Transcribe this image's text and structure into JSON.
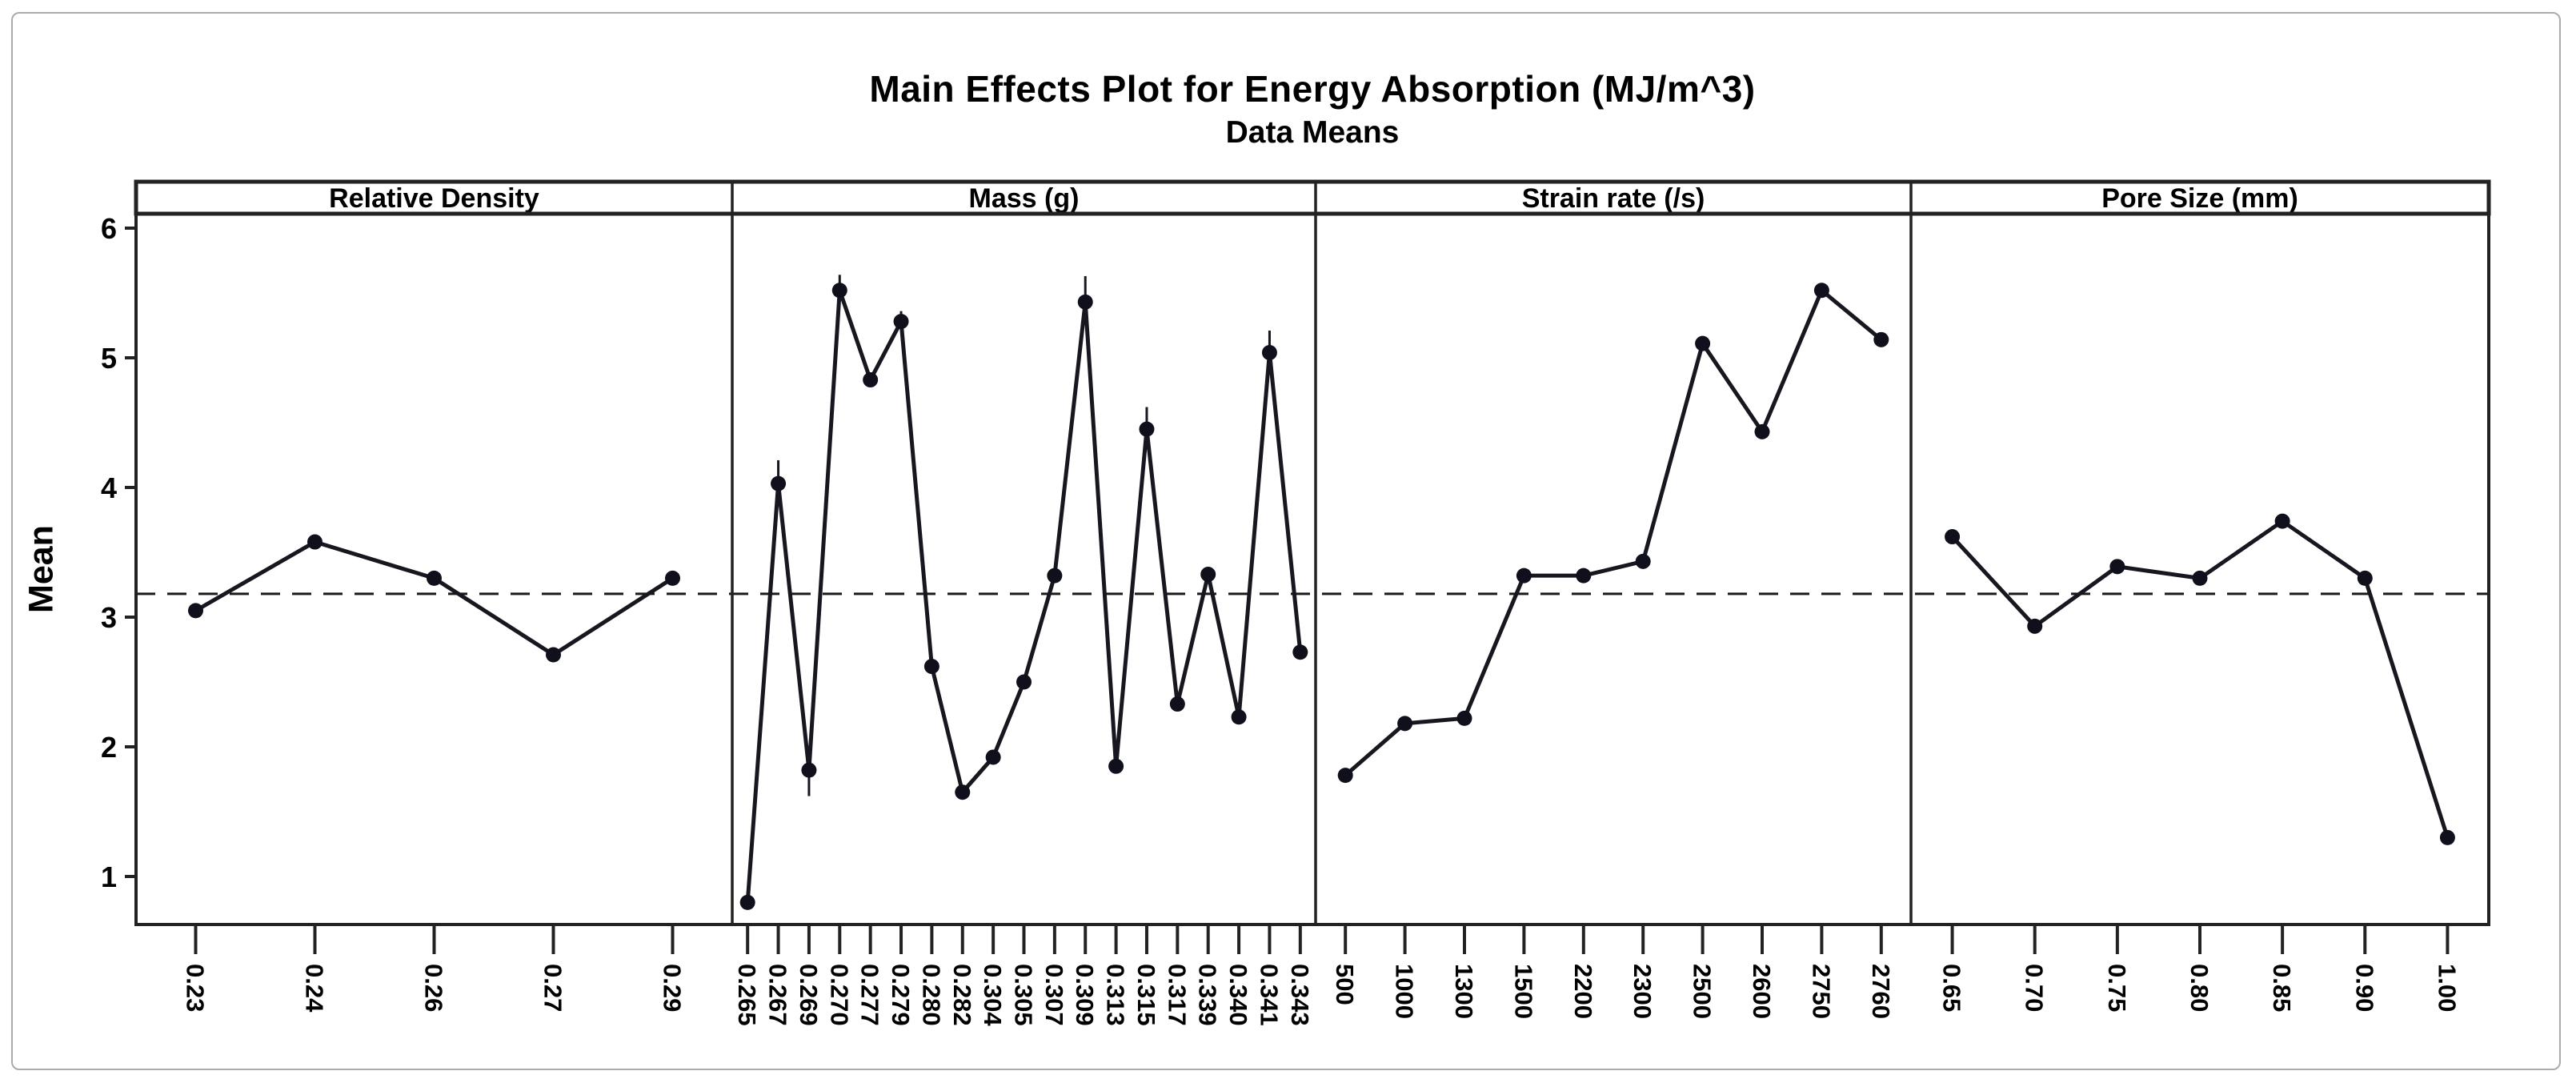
{
  "chart_data": {
    "type": "line",
    "title": "Main Effects Plot for Energy Absorption (MJ/m^3)",
    "subtitle": "Data Means",
    "ylabel": "Mean",
    "ylim": [
      0.6,
      6.1
    ],
    "yticks": [
      6,
      5,
      4,
      3,
      2,
      1
    ],
    "grand_mean": 3.18,
    "grand_mean_style": "dashed",
    "grid": false,
    "legend": "none",
    "marker": "filled-circle",
    "panels": [
      {
        "label": "Relative Density",
        "categories": [
          "0.23",
          "0.24",
          "0.26",
          "0.27",
          "0.29"
        ],
        "values": [
          3.05,
          3.58,
          3.3,
          2.71,
          3.3
        ],
        "whiskers": []
      },
      {
        "label": "Mass (g)",
        "categories": [
          "0.265",
          "0.267",
          "0.269",
          "0.270",
          "0.277",
          "0.279",
          "0.280",
          "0.282",
          "0.304",
          "0.305",
          "0.307",
          "0.309",
          "0.313",
          "0.315",
          "0.317",
          "0.339",
          "0.340",
          "0.341",
          "0.343"
        ],
        "values": [
          0.8,
          4.03,
          1.82,
          5.52,
          4.83,
          5.28,
          2.62,
          1.65,
          1.92,
          2.5,
          3.32,
          5.43,
          1.85,
          4.45,
          2.33,
          3.33,
          2.23,
          5.04,
          2.73
        ],
        "whiskers": [
          {
            "i": 1,
            "up": 0.18,
            "down": 0
          },
          {
            "i": 2,
            "up": 0,
            "down": 0.2
          },
          {
            "i": 3,
            "up": 0.12,
            "down": 0
          },
          {
            "i": 5,
            "up": 0.08,
            "down": 0
          },
          {
            "i": 11,
            "up": 0.2,
            "down": 0
          },
          {
            "i": 13,
            "up": 0.17,
            "down": 0
          },
          {
            "i": 17,
            "up": 0.17,
            "down": 0
          }
        ]
      },
      {
        "label": "Strain rate (/s)",
        "categories": [
          "500",
          "1000",
          "1300",
          "1500",
          "2200",
          "2300",
          "2500",
          "2600",
          "2750",
          "2760"
        ],
        "values": [
          1.78,
          2.18,
          2.22,
          3.32,
          3.32,
          3.43,
          5.11,
          4.43,
          5.52,
          5.14
        ],
        "whiskers": []
      },
      {
        "label": "Pore Size (mm)",
        "categories": [
          "0.65",
          "0.70",
          "0.75",
          "0.80",
          "0.85",
          "0.90",
          "1.00"
        ],
        "values": [
          3.62,
          2.93,
          3.39,
          3.3,
          3.74,
          3.3,
          1.3
        ],
        "whiskers": []
      }
    ],
    "colors": {
      "line": "#17171f",
      "marker": "#10101c",
      "axis": "#222222",
      "text": "#000000",
      "mean_line": "#1a1a1a",
      "frame_border": "#ababab",
      "background": "#ffffff"
    }
  }
}
